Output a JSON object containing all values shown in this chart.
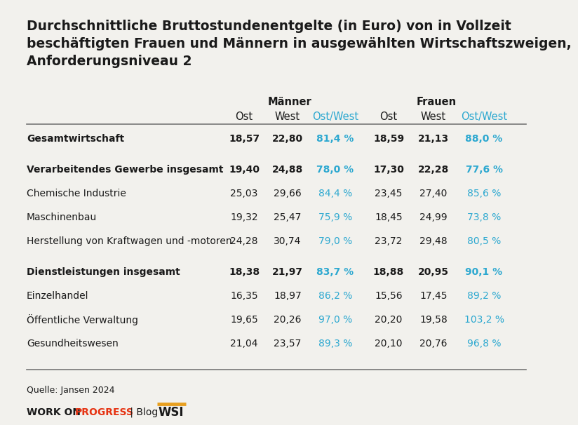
{
  "title": "Durchschnittliche Bruttostundenentgelte (in Euro) von in Vollzeit\nbeschäftigten Frauen und Männern in ausgewählten Wirtschaftszweigen,\nAnforderungsniveau 2",
  "bg_color": "#f2f1ed",
  "header_group1": "Männer",
  "header_group2": "Frauen",
  "col_headers": [
    "Ost",
    "West",
    "Ost/West",
    "Ost",
    "West",
    "Ost/West"
  ],
  "rows": [
    {
      "label": "Gesamtwirtschaft",
      "bold": true,
      "gap_before": true,
      "values": [
        "18,57",
        "22,80",
        "81,4 %",
        "18,59",
        "21,13",
        "88,0 %"
      ]
    },
    {
      "label": "Verarbeitendes Gewerbe insgesamt",
      "bold": true,
      "gap_before": true,
      "values": [
        "19,40",
        "24,88",
        "78,0 %",
        "17,30",
        "22,28",
        "77,6 %"
      ]
    },
    {
      "label": "Chemische Industrie",
      "bold": false,
      "gap_before": false,
      "values": [
        "25,03",
        "29,66",
        "84,4 %",
        "23,45",
        "27,40",
        "85,6 %"
      ]
    },
    {
      "label": "Maschinenbau",
      "bold": false,
      "gap_before": false,
      "values": [
        "19,32",
        "25,47",
        "75,9 %",
        "18,45",
        "24,99",
        "73,8 %"
      ]
    },
    {
      "label": "Herstellung von Kraftwagen und -motoren",
      "bold": false,
      "gap_before": false,
      "values": [
        "24,28",
        "30,74",
        "79,0 %",
        "23,72",
        "29,48",
        "80,5 %"
      ]
    },
    {
      "label": "Dienstleistungen insgesamt",
      "bold": true,
      "gap_before": true,
      "values": [
        "18,38",
        "21,97",
        "83,7 %",
        "18,88",
        "20,95",
        "90,1 %"
      ]
    },
    {
      "label": "Einzelhandel",
      "bold": false,
      "gap_before": false,
      "values": [
        "16,35",
        "18,97",
        "86,2 %",
        "15,56",
        "17,45",
        "89,2 %"
      ]
    },
    {
      "label": "Öffentliche Verwaltung",
      "bold": false,
      "gap_before": false,
      "values": [
        "19,65",
        "20,26",
        "97,0 %",
        "20,20",
        "19,58",
        "103,2 %"
      ]
    },
    {
      "label": "Gesundheitswesen",
      "bold": false,
      "gap_before": false,
      "values": [
        "21,04",
        "23,57",
        "89,3 %",
        "20,10",
        "20,76",
        "96,8 %"
      ]
    }
  ],
  "source_text": "Quelle: Jansen 2024",
  "cyan_color": "#2ca8d0",
  "text_color": "#1a1a1a",
  "red_color": "#e63312",
  "orange_color": "#e8a020",
  "wsi_color": "#1a1a1a",
  "title_fontsize": 13.5,
  "header_fontsize": 10.5,
  "data_fontsize": 10.0,
  "source_fontsize": 9.0,
  "footer_fontsize": 10.0
}
